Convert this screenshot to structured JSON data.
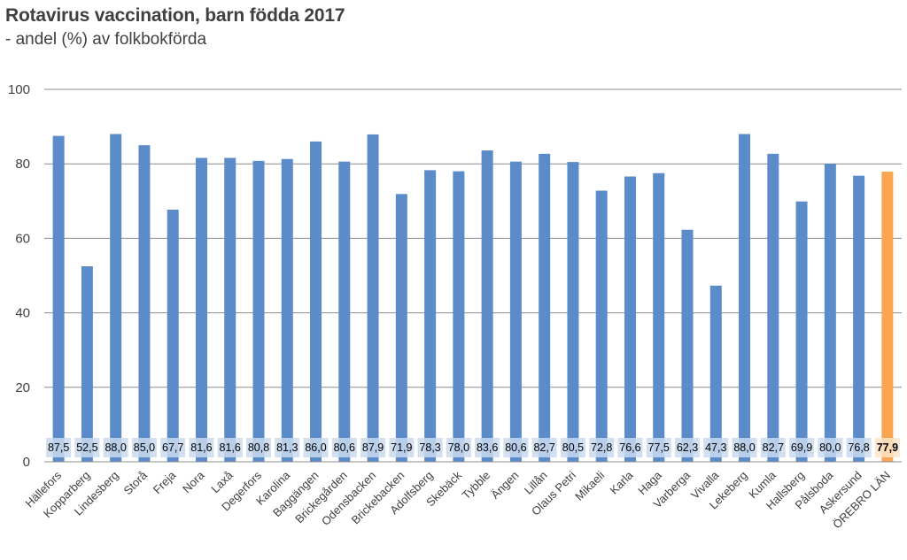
{
  "chart_data": {
    "type": "bar",
    "title": "Rotavirus vaccination, barn födda 2017",
    "subtitle": "- andel (%) av folkbokförda",
    "xlabel": "",
    "ylabel": "",
    "ylim": [
      0,
      100
    ],
    "yticks": [
      0,
      20,
      40,
      60,
      80,
      100
    ],
    "grid": true,
    "categories": [
      "Hällefors",
      "Kopparberg",
      "Lindesberg",
      "Storå",
      "Freja",
      "Nora",
      "Laxå",
      "Degerfors",
      "Karolina",
      "Baggängen",
      "Brickegården",
      "Odensbacken",
      "Brickebacken",
      "Adolfsberg",
      "Skebäck",
      "Tybble",
      "Ängen",
      "Lillån",
      "Olaus Petri",
      "Mikaeli",
      "Karla",
      "Haga",
      "Varberga",
      "Vivalla",
      "Lekeberg",
      "Kumla",
      "Hallsberg",
      "Pålsboda",
      "Askersund",
      "ÖREBRO LÄN"
    ],
    "values": [
      87.5,
      52.5,
      88.0,
      85.0,
      67.7,
      81.6,
      81.6,
      80.8,
      81.3,
      86.0,
      80.6,
      87.9,
      71.9,
      78.3,
      78.0,
      83.6,
      80.6,
      82.7,
      80.5,
      72.8,
      76.6,
      77.5,
      62.3,
      47.3,
      88.0,
      82.7,
      69.9,
      80.0,
      76.8,
      77.9
    ],
    "value_labels": [
      "87,5",
      "52,5",
      "88,0",
      "85,0",
      "67,7",
      "81,6",
      "81,6",
      "80,8",
      "81,3",
      "86,0",
      "80,6",
      "87,9",
      "71,9",
      "78,3",
      "78,0",
      "83,6",
      "80,6",
      "82,7",
      "80,5",
      "72,8",
      "76,6",
      "77,5",
      "62,3",
      "47,3",
      "88,0",
      "82,7",
      "69,9",
      "80,0",
      "76,8",
      "77,9"
    ],
    "highlight_index": 29,
    "colors": {
      "bar": "#5b8bc9",
      "highlight": "#f9a552",
      "label_bg": "#c9d9ee",
      "grid": "#8c8c8c"
    }
  }
}
